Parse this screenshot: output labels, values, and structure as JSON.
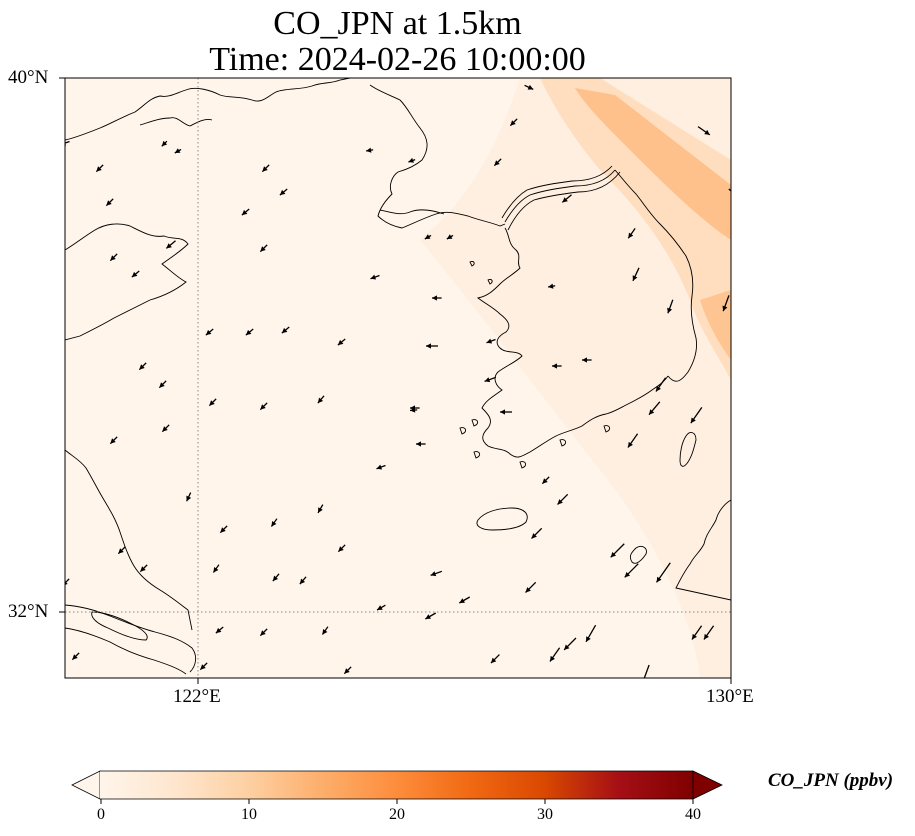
{
  "figure": {
    "title_line1": "CO_JPN at 1.5km",
    "title_line2": "Time: 2024-02-26 10:00:00"
  },
  "map": {
    "extent": {
      "lon_min": 118.7,
      "lon_max": 130,
      "lat_min": 31.1,
      "lat_max": 40
    },
    "gridlines": {
      "lon": [
        122,
        130
      ],
      "lat": [
        32,
        40
      ],
      "style": "dotted"
    },
    "lon_tick_labels": [
      "122°E",
      "130°E"
    ],
    "lat_tick_labels": [
      "40°N",
      "32°N"
    ],
    "background_color": "#fff5eb",
    "coastline_color": "#000000",
    "vector_color": "#000000",
    "plume_color": "#fdb97d"
  },
  "colorbar": {
    "label": "CO_JPN (ppbv)",
    "ticks": [
      "0",
      "10",
      "20",
      "30",
      "40"
    ],
    "min": 0,
    "max": 40,
    "extend": "both",
    "colormap": "Oranges-Reds",
    "colors": [
      "#fff5eb",
      "#fee6ce",
      "#fdd0a2",
      "#fdae6b",
      "#fd8d3c",
      "#f16913",
      "#d94801",
      "#a50f15",
      "#7f0000"
    ]
  }
}
